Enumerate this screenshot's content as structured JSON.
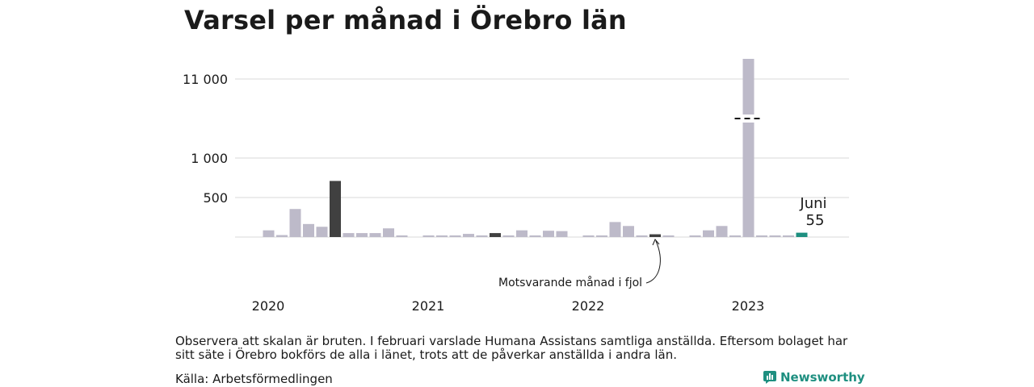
{
  "title": "Varsel per månad i Örebro län",
  "note": "Observera att skalan är bruten. I februari varslade Humana Assistans samtliga anställda. Eftersom bolaget har sitt säte i Örebro bokförs de alla i länet, trots att de påverkar anställda i andra län.",
  "source": "Källa: Arbetsförmedlingen",
  "brand": "Newsworthy",
  "colors": {
    "default": "#bdbac9",
    "highlight": "#404040",
    "latest": "#1e8f80",
    "grid": "#d8d8d8",
    "brand": "#1e8f80"
  },
  "chart_data": {
    "type": "bar",
    "broken_axis": true,
    "y_ticks": [
      {
        "label": "500",
        "value": 500
      },
      {
        "label": "1 000",
        "value": 1000
      },
      {
        "label": "11 000",
        "value": 11000
      }
    ],
    "x_tick_labels": [
      "2020",
      "2021",
      "2022",
      "2023"
    ],
    "annotation": "Motsvarande månad i fjol",
    "latest_label": {
      "month": "Juni",
      "value": "55"
    },
    "bars": [
      {
        "month": "2020-01",
        "value": 0,
        "kind": "default"
      },
      {
        "month": "2020-02",
        "value": 85,
        "kind": "default"
      },
      {
        "month": "2020-03",
        "value": 25,
        "kind": "default"
      },
      {
        "month": "2020-04",
        "value": 355,
        "kind": "default"
      },
      {
        "month": "2020-05",
        "value": 165,
        "kind": "default"
      },
      {
        "month": "2020-06",
        "value": 130,
        "kind": "default"
      },
      {
        "month": "2020-07",
        "value": 710,
        "kind": "highlight"
      },
      {
        "month": "2020-08",
        "value": 50,
        "kind": "default"
      },
      {
        "month": "2020-09",
        "value": 50,
        "kind": "default"
      },
      {
        "month": "2020-10",
        "value": 50,
        "kind": "default"
      },
      {
        "month": "2020-11",
        "value": 110,
        "kind": "default"
      },
      {
        "month": "2020-12",
        "value": 20,
        "kind": "default"
      },
      {
        "month": "2021-01",
        "value": 0,
        "kind": "default"
      },
      {
        "month": "2021-02",
        "value": 10,
        "kind": "default"
      },
      {
        "month": "2021-03",
        "value": 10,
        "kind": "default"
      },
      {
        "month": "2021-04",
        "value": 20,
        "kind": "default"
      },
      {
        "month": "2021-05",
        "value": 40,
        "kind": "default"
      },
      {
        "month": "2021-06",
        "value": 20,
        "kind": "default"
      },
      {
        "month": "2021-07",
        "value": 50,
        "kind": "highlight"
      },
      {
        "month": "2021-08",
        "value": 20,
        "kind": "default"
      },
      {
        "month": "2021-09",
        "value": 85,
        "kind": "default"
      },
      {
        "month": "2021-10",
        "value": 10,
        "kind": "default"
      },
      {
        "month": "2021-11",
        "value": 80,
        "kind": "default"
      },
      {
        "month": "2021-12",
        "value": 75,
        "kind": "default"
      },
      {
        "month": "2022-01",
        "value": 0,
        "kind": "default"
      },
      {
        "month": "2022-02",
        "value": 20,
        "kind": "default"
      },
      {
        "month": "2022-03",
        "value": 10,
        "kind": "default"
      },
      {
        "month": "2022-04",
        "value": 190,
        "kind": "default"
      },
      {
        "month": "2022-05",
        "value": 140,
        "kind": "default"
      },
      {
        "month": "2022-06",
        "value": 20,
        "kind": "default"
      },
      {
        "month": "2022-07",
        "value": 35,
        "kind": "highlight"
      },
      {
        "month": "2022-08",
        "value": 20,
        "kind": "default"
      },
      {
        "month": "2022-09",
        "value": 0,
        "kind": "default"
      },
      {
        "month": "2022-10",
        "value": 20,
        "kind": "default"
      },
      {
        "month": "2022-11",
        "value": 85,
        "kind": "default"
      },
      {
        "month": "2022-12",
        "value": 140,
        "kind": "default"
      },
      {
        "month": "2023-01",
        "value": 20,
        "kind": "default"
      },
      {
        "month": "2023-02",
        "value": 11300,
        "kind": "default",
        "broken": true
      },
      {
        "month": "2023-03",
        "value": 20,
        "kind": "default"
      },
      {
        "month": "2023-04",
        "value": 20,
        "kind": "default"
      },
      {
        "month": "2023-05",
        "value": 10,
        "kind": "default"
      },
      {
        "month": "2023-06",
        "value": 55,
        "kind": "latest"
      }
    ]
  }
}
